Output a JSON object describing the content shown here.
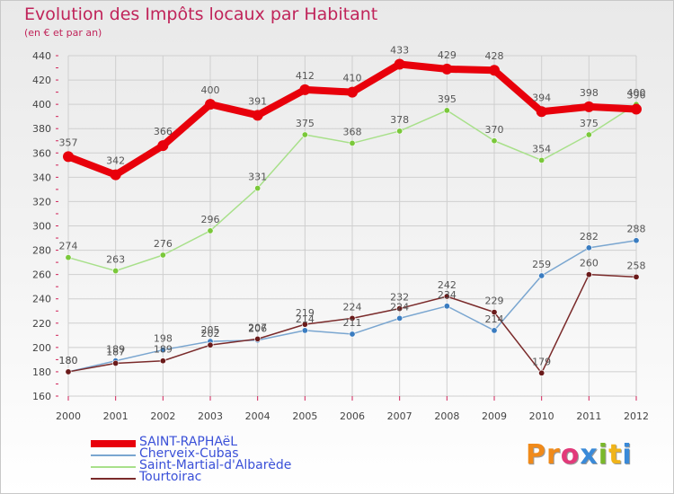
{
  "header": {
    "title": "Evolution des Impôts locaux par Habitant",
    "subtitle": "(en € et par an)"
  },
  "logo": {
    "letters": [
      "P",
      "r",
      "o",
      "x",
      "i",
      "t",
      "i"
    ]
  },
  "colors": {
    "axis_label": "#444444",
    "data_label": "#555555",
    "grid": "#cfcfcf",
    "axis_ticks": "#d0245a",
    "legend_text": "#3a50d8"
  },
  "chart_data": {
    "type": "line",
    "title": "Evolution des Impôts locaux par Habitant",
    "subtitle": "(en € et par an)",
    "xlabel": "",
    "ylabel": "",
    "x": [
      2000,
      2001,
      2002,
      2003,
      2004,
      2005,
      2006,
      2007,
      2008,
      2009,
      2010,
      2011,
      2012
    ],
    "ylim": [
      160,
      440
    ],
    "yticks": [
      160,
      180,
      200,
      220,
      240,
      260,
      280,
      300,
      320,
      340,
      360,
      380,
      400,
      420,
      440
    ],
    "grid": true,
    "legend_position": "bottom-left",
    "series": [
      {
        "name": "SAINT-RAPHAëL",
        "color": "#e8000b",
        "point_color": "#e8000b",
        "values": [
          357,
          342,
          366,
          400,
          391,
          412,
          410,
          433,
          429,
          428,
          394,
          398,
          396
        ],
        "labels": [
          "357",
          "342",
          "366",
          "400",
          "391",
          "412",
          "410",
          "433",
          "429",
          "428",
          "394",
          "398",
          "396"
        ]
      },
      {
        "name": "Cherveix-Cubas",
        "color": "#7aa6d0",
        "point_color": "#3a7cc0",
        "values": [
          180,
          189,
          198,
          205,
          206,
          214,
          211,
          224,
          234,
          214,
          259,
          282,
          288
        ],
        "labels": [
          "180",
          "189",
          "198",
          "205",
          "206",
          "214",
          "211",
          "224",
          "234",
          "214",
          "259",
          "282",
          "288"
        ]
      },
      {
        "name": "Saint-Martial-d'Albarède",
        "color": "#a8e08a",
        "point_color": "#7ac83a",
        "values": [
          274,
          263,
          276,
          296,
          331,
          375,
          368,
          378,
          395,
          370,
          354,
          375,
          400
        ],
        "labels": [
          "274",
          "263",
          "276",
          "296",
          "331",
          "375",
          "368",
          "378",
          "395",
          "370",
          "354",
          "375",
          "400"
        ]
      },
      {
        "name": "Tourtoirac",
        "color": "#7a2a2a",
        "point_color": "#6a1a1a",
        "values": [
          180,
          187,
          189,
          202,
          207,
          219,
          224,
          232,
          242,
          229,
          179,
          260,
          258
        ],
        "labels": [
          "180",
          "187",
          "189",
          "202",
          "207",
          "219",
          "224",
          "232",
          "242",
          "229",
          "179",
          "260",
          "258"
        ]
      }
    ]
  }
}
